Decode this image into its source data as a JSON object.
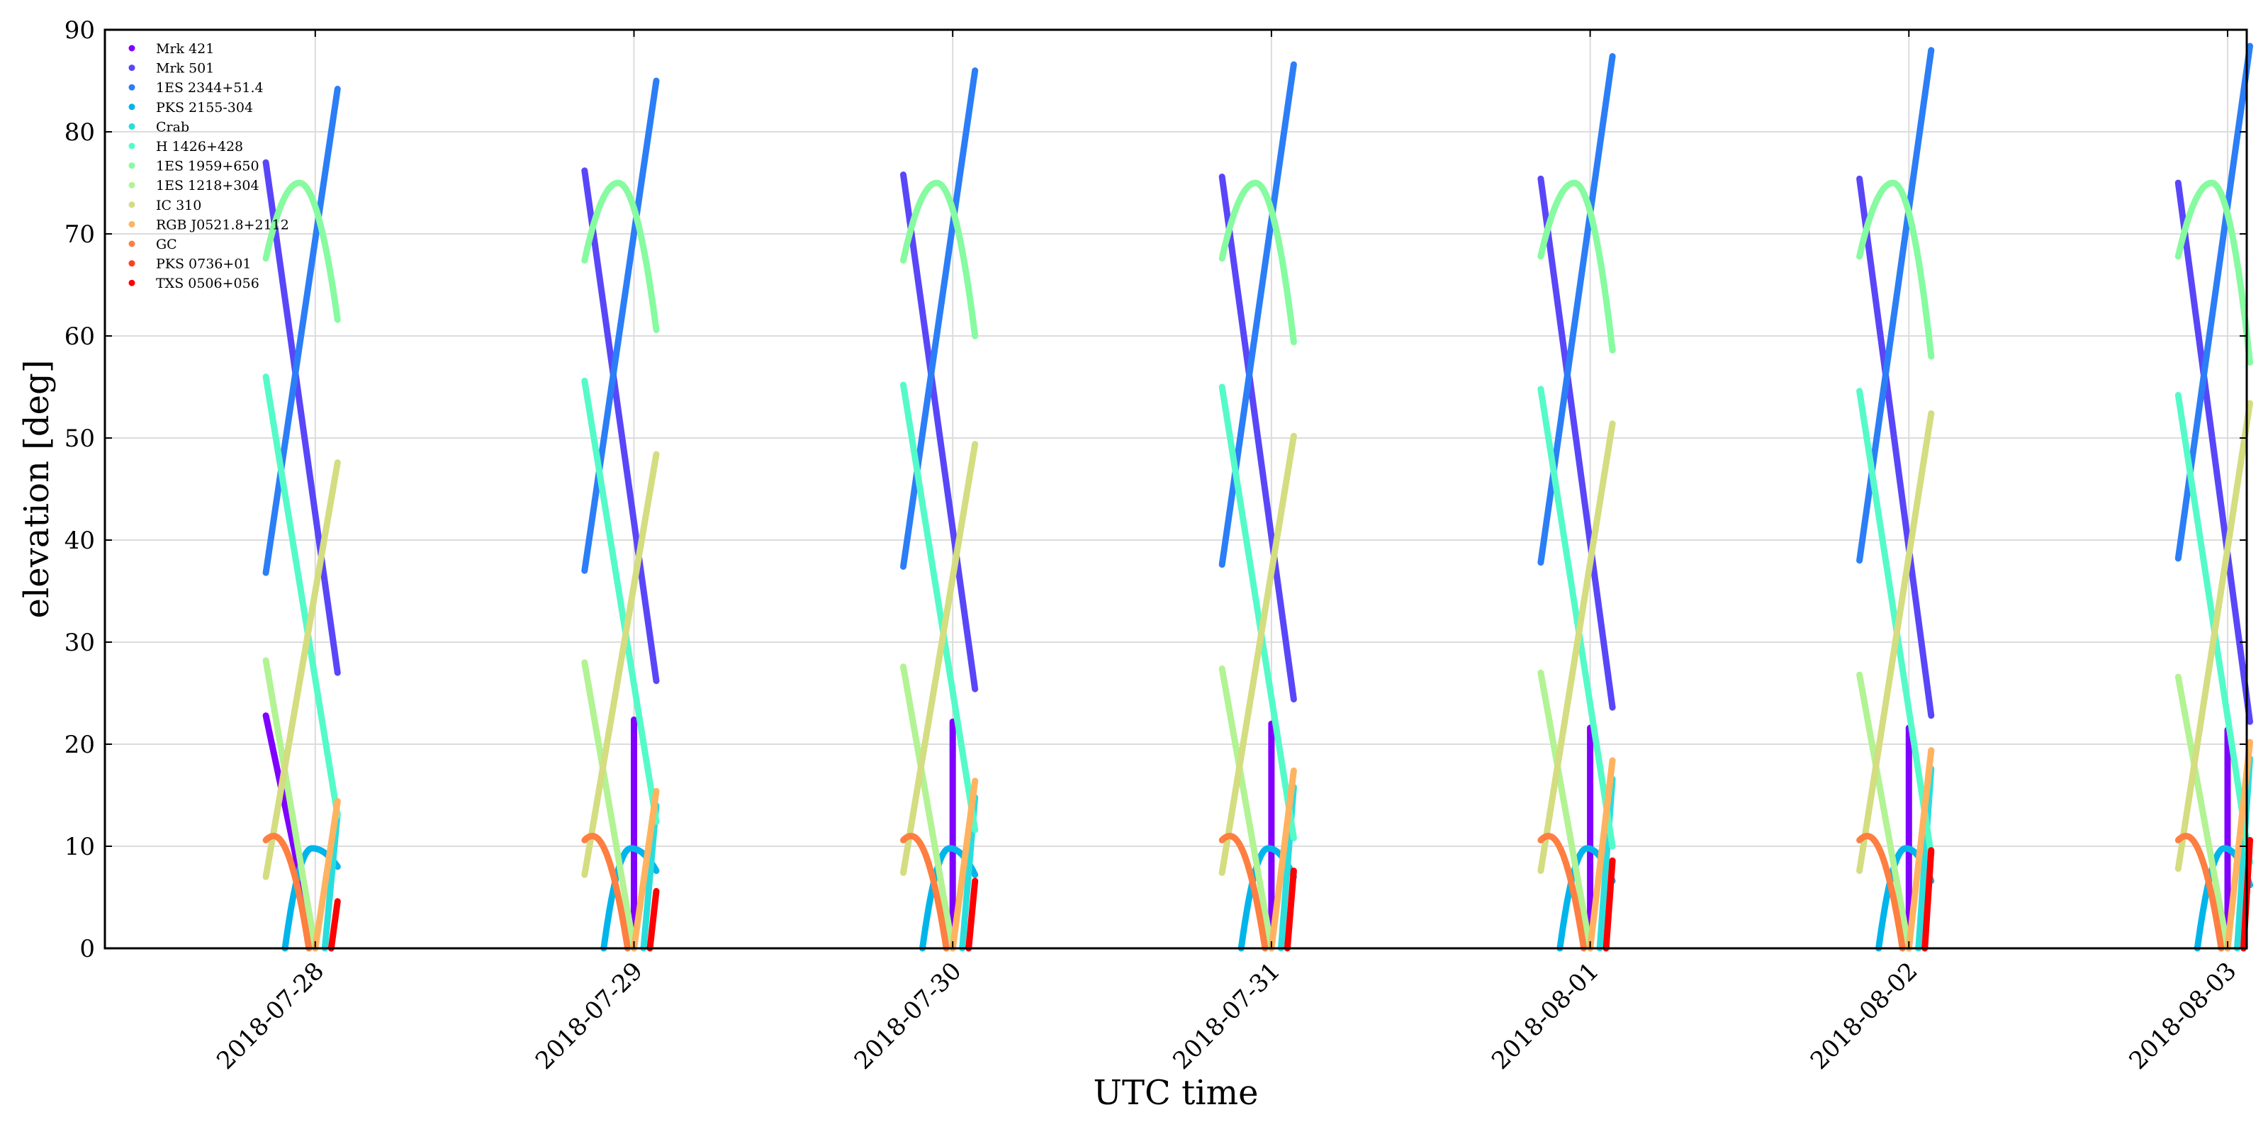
{
  "chart_data": {
    "type": "line",
    "title": "",
    "xlabel": "UTC time",
    "ylabel": "elevation [deg]",
    "ylim": [
      0,
      90
    ],
    "yticks": [
      0,
      10,
      20,
      30,
      40,
      50,
      60,
      70,
      80,
      90
    ],
    "xlim": [
      -0.66,
      6.06
    ],
    "xticks": [
      {
        "value": 0,
        "label": "2018-07-28"
      },
      {
        "value": 1,
        "label": "2018-07-29"
      },
      {
        "value": 2,
        "label": "2018-07-30"
      },
      {
        "value": 3,
        "label": "2018-07-31"
      },
      {
        "value": 4,
        "label": "2018-08-01"
      },
      {
        "value": 5,
        "label": "2018-08-02"
      },
      {
        "value": 6,
        "label": "2018-08-03"
      }
    ],
    "x_unit": "days after 2018-07-28 00:00 UTC",
    "grid": true,
    "legend": "top-left",
    "series": [
      {
        "name": "Mrk 421",
        "color": "#8000ff",
        "kind": "linear",
        "day_start": [
          -0.155,
          0.0
        ],
        "start": [
          22.8,
          22.4,
          22.2,
          22.0,
          21.6,
          21.6,
          21.4
        ],
        "end_day": [
          0.0,
          0.0,
          0.0,
          0.0,
          0.0,
          0.0,
          0.0
        ],
        "end": [
          0,
          0,
          0,
          0,
          0,
          0,
          0
        ]
      },
      {
        "name": "Mrk 501",
        "color": "#5a46f9",
        "kind": "linear",
        "day_start": -0.155,
        "start": [
          77.0,
          76.2,
          75.8,
          75.6,
          75.4,
          75.4,
          75.0
        ],
        "end_day": 0.07,
        "end": [
          27.0,
          26.2,
          25.4,
          24.4,
          23.6,
          22.8,
          22.2
        ]
      },
      {
        "name": "1ES 2344+51.4",
        "color": "#2c7ef7",
        "kind": "linear",
        "day_start": -0.155,
        "start": [
          36.8,
          37.0,
          37.4,
          37.6,
          37.8,
          38.0,
          38.2
        ],
        "end_day": 0.07,
        "end": [
          84.2,
          85.0,
          86.0,
          86.6,
          87.4,
          88.0,
          88.4
        ]
      },
      {
        "name": "PKS 2155-304",
        "color": "#00b5eb",
        "kind": "arc",
        "day_start": -0.095,
        "peak_day": -0.01,
        "end_day": 0.07,
        "peak": [
          9.8,
          9.8,
          9.8,
          9.8,
          9.8,
          9.8,
          9.8
        ],
        "start": [
          0,
          0,
          0,
          0,
          0,
          0,
          0
        ],
        "end": [
          8.0,
          7.6,
          7.2,
          7.0,
          6.6,
          6.6,
          6.2
        ]
      },
      {
        "name": "Crab",
        "color": "#2adddd",
        "kind": "linear",
        "day_start": 0.03,
        "start": [
          0,
          0,
          0,
          0,
          0,
          0,
          0
        ],
        "end_day": 0.07,
        "end": [
          13.2,
          14.0,
          14.8,
          15.8,
          16.6,
          17.6,
          18.6
        ]
      },
      {
        "name": "H 1426+428",
        "color": "#54fbc9",
        "kind": "linear",
        "day_start": -0.155,
        "start": [
          56.0,
          55.6,
          55.2,
          55.0,
          54.8,
          54.6,
          54.2
        ],
        "end_day": 0.07,
        "end": [
          13.0,
          12.4,
          11.6,
          10.8,
          10.0,
          9.2,
          8.4
        ]
      },
      {
        "name": "1ES 1959+650",
        "color": "#86fba0",
        "kind": "arc",
        "day_start": -0.155,
        "peak_day": -0.05,
        "end_day": 0.07,
        "start": [
          67.6,
          67.4,
          67.4,
          67.6,
          67.8,
          67.8,
          67.8
        ],
        "peak": [
          75.0,
          75.0,
          75.0,
          75.0,
          75.0,
          75.0,
          75.0
        ],
        "end": [
          61.6,
          60.6,
          60.0,
          59.4,
          58.6,
          58.0,
          57.4
        ]
      },
      {
        "name": "1ES 1218+304",
        "color": "#b2f393",
        "kind": "linear",
        "day_start": -0.155,
        "start": [
          28.2,
          28.0,
          27.6,
          27.4,
          27.0,
          26.8,
          26.6
        ],
        "end_day": 0.0,
        "end": [
          0,
          0,
          0,
          0,
          0,
          0,
          0
        ]
      },
      {
        "name": "IC 310",
        "color": "#d4dd80",
        "kind": "linear",
        "day_start": -0.155,
        "start": [
          7.0,
          7.2,
          7.4,
          7.4,
          7.6,
          7.6,
          7.8
        ],
        "end_day": 0.07,
        "end": [
          47.6,
          48.4,
          49.4,
          50.2,
          51.4,
          52.4,
          53.4
        ]
      },
      {
        "name": "RGB J0521.8+2112",
        "color": "#ffb360",
        "kind": "linear",
        "day_start": 0.0,
        "start": [
          0,
          0,
          0,
          0,
          0,
          0,
          0
        ],
        "end_day": 0.07,
        "end": [
          14.4,
          15.4,
          16.4,
          17.4,
          18.4,
          19.4,
          20.2
        ]
      },
      {
        "name": "GC",
        "color": "#ff7e41",
        "kind": "arc",
        "day_start": -0.155,
        "peak_day": -0.13,
        "end_day": -0.02,
        "start": [
          10.6,
          10.6,
          10.6,
          10.6,
          10.6,
          10.6,
          10.6
        ],
        "peak": [
          11.0,
          11.0,
          11.0,
          11.0,
          11.0,
          11.0,
          11.0
        ],
        "end": [
          0,
          0,
          0,
          0,
          0,
          0,
          0
        ]
      },
      {
        "name": "PKS 0736+01",
        "color": "#ff3e20",
        "kind": "none"
      },
      {
        "name": "TXS 0506+056",
        "color": "#ff0000",
        "kind": "linear",
        "day_start": 0.05,
        "start": [
          0,
          0,
          0,
          0,
          0,
          0,
          0
        ],
        "end_day": 0.07,
        "end": [
          4.6,
          5.6,
          6.6,
          7.6,
          8.6,
          9.6,
          10.6
        ]
      }
    ]
  }
}
